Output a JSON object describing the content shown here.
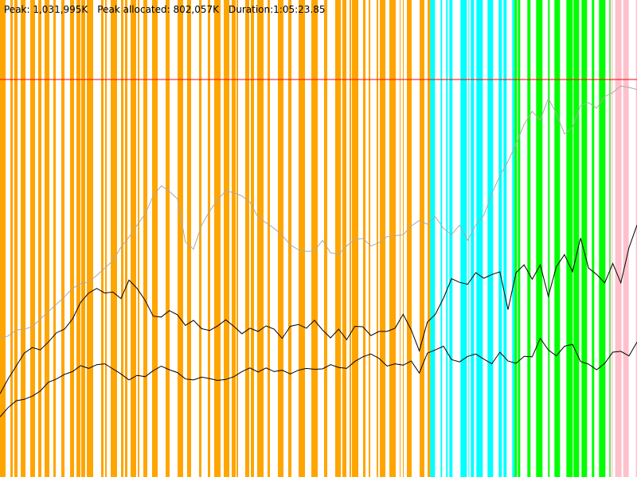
{
  "header": {
    "peak": "Peak: 1,031,995K",
    "peak_allocated": "Peak allocated: 802,057K",
    "duration": "Duration:1:05:23.85"
  },
  "colors": {
    "phase1": "#FFA500",
    "phase2": "#00FFFF",
    "phase3": "#00FF00",
    "phase4": "#FFC0CB",
    "limit_line": "#FF0000",
    "peak_line": "#AAAAAA",
    "allocated_line": "#000000",
    "min_line": "#000000",
    "background": "#FFFFFF"
  },
  "chart_data": {
    "type": "line",
    "title": "",
    "xlabel": "",
    "ylabel": "",
    "grid": false,
    "x_range_seconds": [
      0,
      3923.85
    ],
    "y_range_k": [
      0,
      1031995
    ],
    "limit_k": 860000,
    "phases": [
      {
        "color_key": "phase1",
        "start_s": 0,
        "end_s": 2650
      },
      {
        "color_key": "phase2",
        "start_s": 2650,
        "end_s": 3170
      },
      {
        "color_key": "phase3",
        "start_s": 3170,
        "end_s": 3760
      },
      {
        "color_key": "phase4",
        "start_s": 3760,
        "end_s": 3923.85
      }
    ],
    "series": [
      {
        "key": "peak",
        "color_key": "peak_line",
        "values": [
          300000,
          305000,
          318000,
          320000,
          325000,
          342000,
          358000,
          374000,
          390000,
          408000,
          418000,
          422000,
          436000,
          452000,
          468000,
          497000,
          519000,
          545000,
          569000,
          608000,
          630000,
          618000,
          602000,
          508000,
          493000,
          545000,
          575000,
          600000,
          619000,
          615000,
          608000,
          595000,
          562000,
          550000,
          538000,
          523000,
          502000,
          492000,
          488000,
          489000,
          512000,
          485000,
          482000,
          500000,
          514000,
          516000,
          500000,
          507000,
          520000,
          522000,
          524000,
          543000,
          555000,
          547000,
          563000,
          538000,
          524000,
          545000,
          512000,
          545000,
          566000,
          613000,
          652000,
          683000,
          720000,
          763000,
          791000,
          772000,
          819000,
          787000,
          742000,
          756000,
          804000,
          810000,
          798000,
          823000,
          832000,
          846000,
          843000,
          838000
        ]
      },
      {
        "key": "allocated",
        "color_key": "allocated_line",
        "values": [
          180000,
          212000,
          240000,
          268000,
          280000,
          275000,
          292000,
          312000,
          320000,
          342000,
          378000,
          398000,
          408000,
          398000,
          400000,
          386000,
          426000,
          408000,
          382000,
          348000,
          346000,
          360000,
          351000,
          328000,
          339000,
          321000,
          317000,
          327000,
          340000,
          326000,
          310000,
          322000,
          315000,
          327000,
          320000,
          300000,
          326000,
          330000,
          322000,
          339000,
          318000,
          301000,
          320000,
          297000,
          326000,
          325000,
          306000,
          315000,
          315000,
          322000,
          352000,
          318000,
          273000,
          335000,
          352000,
          387000,
          429000,
          421000,
          417000,
          442000,
          430000,
          438000,
          444000,
          362000,
          442000,
          459000,
          428000,
          459000,
          391000,
          455000,
          481000,
          444000,
          517000,
          452000,
          438000,
          420000,
          462000,
          420000,
          496000,
          545000
        ]
      },
      {
        "key": "minimum",
        "color_key": "min_line",
        "values": [
          130000,
          150000,
          165000,
          168000,
          175000,
          186000,
          205000,
          212000,
          222000,
          228000,
          241000,
          235000,
          243000,
          245000,
          234000,
          223000,
          210000,
          220000,
          217000,
          230000,
          240000,
          232000,
          226000,
          212000,
          210000,
          216000,
          213000,
          209000,
          211000,
          217000,
          228000,
          236000,
          227000,
          236000,
          228000,
          231000,
          223000,
          231000,
          235000,
          233000,
          234000,
          243000,
          237000,
          235000,
          250000,
          260000,
          266000,
          257000,
          240000,
          245000,
          242000,
          251000,
          225000,
          268000,
          275000,
          283000,
          254000,
          249000,
          261000,
          266000,
          255000,
          245000,
          270000,
          251000,
          246000,
          261000,
          260000,
          300000,
          275000,
          262000,
          283000,
          287000,
          250000,
          244000,
          232000,
          246000,
          270000,
          272000,
          262000,
          292000
        ]
      }
    ]
  }
}
